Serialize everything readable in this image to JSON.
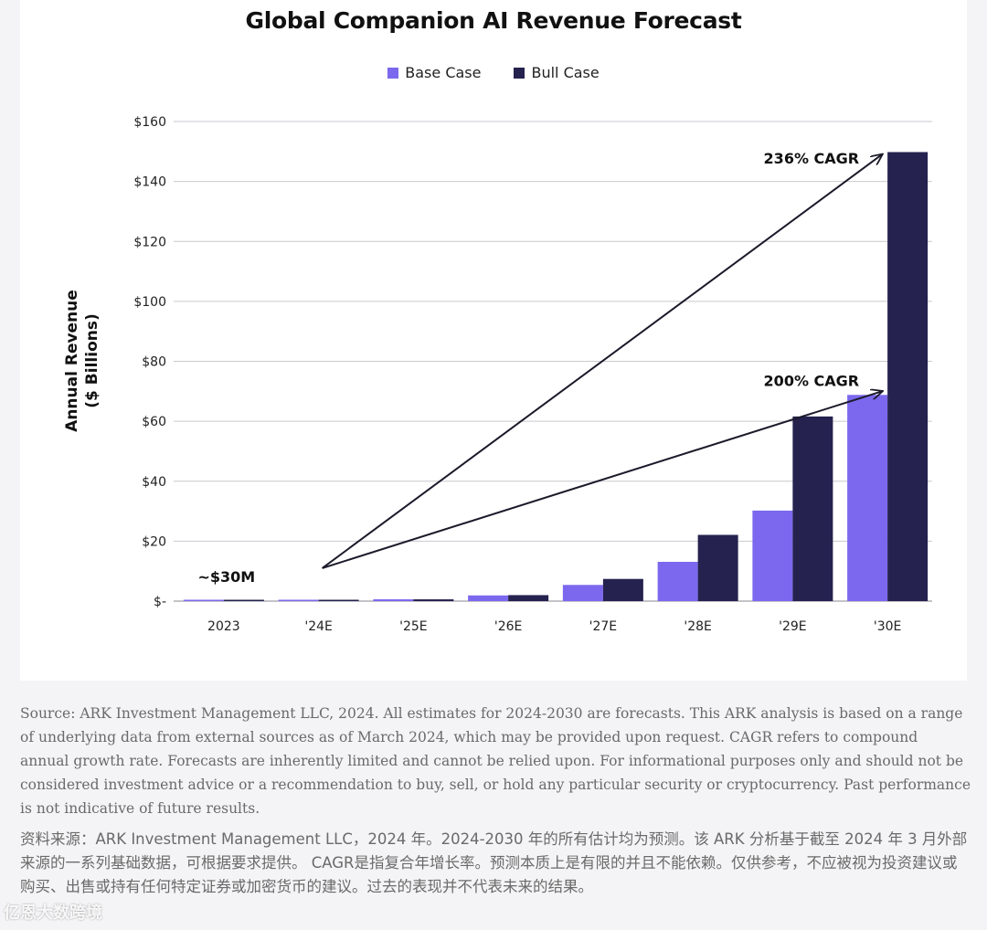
{
  "colors": {
    "base": "#7b68ee",
    "bull": "#25224f",
    "grid": "#c9c9cf",
    "arrow": "#1a1a2a"
  },
  "chart_data": {
    "type": "bar",
    "title": "Global Companion AI Revenue Forecast",
    "ylabel": "Annual Revenue ($ Billions)",
    "ylabel_lines": [
      "Annual Revenue",
      "($ Billions)"
    ],
    "xlabel": "",
    "ylim": [
      0,
      160
    ],
    "yticks": [
      0,
      20,
      40,
      60,
      80,
      100,
      120,
      140,
      160
    ],
    "ytick_labels": [
      "$-",
      "$20",
      "$40",
      "$60",
      "$80",
      "$100",
      "$120",
      "$140",
      "$160"
    ],
    "grid": true,
    "categories": [
      "2023",
      "'24E",
      "'25E",
      "'26E",
      "'27E",
      "'28E",
      "'29E",
      "'30E"
    ],
    "series": [
      {
        "name": "Base Case",
        "values": [
          0.03,
          0.1,
          0.6,
          1.9,
          5.4,
          13.1,
          30.2,
          68.8
        ]
      },
      {
        "name": "Bull Case",
        "values": [
          0.03,
          0.1,
          0.6,
          2.0,
          7.4,
          22.1,
          61.6,
          149.8
        ]
      }
    ],
    "annotations": [
      {
        "text": "~$30M",
        "category": "2023",
        "y": 4
      },
      {
        "text": "236% CAGR",
        "from": {
          "category": "'24E",
          "y": 11
        },
        "to": {
          "category": "'30E",
          "y": 149
        }
      },
      {
        "text": "200% CAGR",
        "from": {
          "category": "'24E",
          "y": 11
        },
        "to": {
          "category": "'30E",
          "y": 70
        }
      }
    ],
    "legend": [
      "Base Case",
      "Bull Case"
    ]
  },
  "notes": {
    "english": "Source: ARK Investment Management LLC, 2024. All estimates for 2024-2030 are forecasts. This ARK analysis is based on a range of underlying data from external sources as of March 2024, which may be provided upon request. CAGR refers to compound annual growth rate. Forecasts are inherently limited and cannot be relied upon. For informational purposes only and should not be considered investment advice or a recommendation to buy, sell, or hold any particular security or cryptocurrency. Past performance is not indicative of future results.",
    "chinese": "资料来源：ARK Investment Management LLC，2024 年。2024-2030 年的所有估计均为预测。该 ARK 分析基于截至 2024 年 3 月外部来源的一系列基础数据，可根据要求提供。 CAGR是指复合年增长率。预测本质上是有限的并且不能依赖。仅供参考，不应被视为投资建议或购买、出售或持有任何特定证券或加密货币的建议。过去的表现并不代表未来的结果。"
  },
  "watermark": "亿恩大数跨境"
}
